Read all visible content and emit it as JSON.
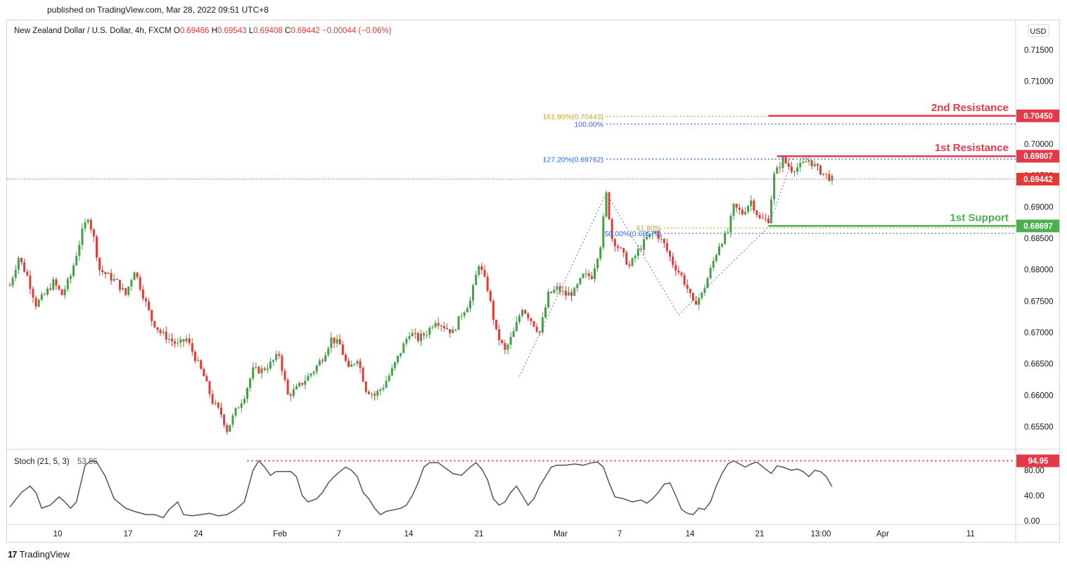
{
  "header": {
    "published": "published on TradingView.com, Mar 28, 2022 09:51 UTC+8"
  },
  "footer": {
    "brand": "TradingView",
    "logo_glyph": "17"
  },
  "colors": {
    "up": "#43a047",
    "down": "#e53935",
    "resistance": "#e53949",
    "support": "#4caf50",
    "fib_gold": "#c9a227",
    "fib_blue": "#2962ff",
    "stoch_line": "#555555",
    "grid": "#f0f3fa"
  },
  "chart_data": {
    "type": "candlestick",
    "symbol": "New Zealand Dollar / U.S. Dollar, 4h, FXCM",
    "ohlc": {
      "o_label": "O",
      "o_value": "0.69486",
      "h_label": "H",
      "h_value": "0.69543",
      "l_label": "L",
      "l_value": "0.69408",
      "c_label": "C",
      "c_value": "0.69442",
      "change": "−0.00044 (−0.06%)"
    },
    "currency": "USD",
    "y_ticks": [
      "0.71500",
      "0.71000",
      "0.70500",
      "0.70000",
      "0.69500",
      "0.69000",
      "0.68500",
      "0.68000",
      "0.67500",
      "0.67000",
      "0.66500",
      "0.66000",
      "0.65500"
    ],
    "y_tick_values": [
      0.715,
      0.71,
      0.705,
      0.7,
      0.695,
      0.69,
      0.685,
      0.68,
      0.675,
      0.67,
      0.665,
      0.66,
      0.655
    ],
    "x_ticks": [
      "10",
      "17",
      "24",
      "Feb",
      "7",
      "14",
      "21",
      "Mar",
      "7",
      "14",
      "21",
      "13:00",
      "Apr",
      "11"
    ],
    "price_levels": [
      {
        "name": "2nd Resistance",
        "value": 0.7045,
        "label": "0.70450"
      },
      {
        "name": "1st Resistance",
        "value": 0.69807,
        "label": "0.69807"
      },
      {
        "name": "1st Support",
        "value": 0.68697,
        "label": "0.68697"
      }
    ],
    "last_price": {
      "value": 0.69442,
      "label": "0.69442"
    },
    "fib_levels": [
      {
        "label": "161.80%(0.70443)",
        "value": 0.70443,
        "color": "gold"
      },
      {
        "label": "100.00%",
        "value": 0.7032,
        "color": "blue"
      },
      {
        "label": "127.20%(0.69762)",
        "value": 0.69762,
        "color": "blue"
      },
      {
        "label": "61.80%",
        "value": 0.68666,
        "color": "gold"
      },
      {
        "label": "50.00%(0.68579)",
        "value": 0.68579,
        "color": "blue"
      }
    ],
    "candle_path": [
      [
        0,
        0.6775
      ],
      [
        3,
        0.682
      ],
      [
        6,
        0.679
      ],
      [
        9,
        0.6745
      ],
      [
        12,
        0.676
      ],
      [
        15,
        0.678
      ],
      [
        18,
        0.676
      ],
      [
        21,
        0.679
      ],
      [
        25,
        0.686
      ],
      [
        27,
        0.6885
      ],
      [
        29,
        0.685
      ],
      [
        31,
        0.68
      ],
      [
        34,
        0.679
      ],
      [
        37,
        0.678
      ],
      [
        40,
        0.676
      ],
      [
        43,
        0.68
      ],
      [
        46,
        0.676
      ],
      [
        49,
        0.672
      ],
      [
        52,
        0.67
      ],
      [
        55,
        0.669
      ],
      [
        58,
        0.668
      ],
      [
        61,
        0.669
      ],
      [
        64,
        0.666
      ],
      [
        67,
        0.663
      ],
      [
        70,
        0.659
      ],
      [
        73,
        0.657
      ],
      [
        75,
        0.6545
      ],
      [
        78,
        0.6575
      ],
      [
        81,
        0.66
      ],
      [
        84,
        0.664
      ],
      [
        87,
        0.664
      ],
      [
        90,
        0.665
      ],
      [
        93,
        0.6665
      ],
      [
        96,
        0.66
      ],
      [
        99,
        0.661
      ],
      [
        102,
        0.6625
      ],
      [
        105,
        0.664
      ],
      [
        108,
        0.666
      ],
      [
        111,
        0.669
      ],
      [
        114,
        0.668
      ],
      [
        117,
        0.664
      ],
      [
        120,
        0.666
      ],
      [
        123,
        0.661
      ],
      [
        126,
        0.66
      ],
      [
        129,
        0.6615
      ],
      [
        132,
        0.664
      ],
      [
        135,
        0.667
      ],
      [
        138,
        0.67
      ],
      [
        141,
        0.669
      ],
      [
        144,
        0.67
      ],
      [
        147,
        0.672
      ],
      [
        150,
        0.671
      ],
      [
        153,
        0.67
      ],
      [
        156,
        0.673
      ],
      [
        159,
        0.675
      ],
      [
        162,
        0.681
      ],
      [
        165,
        0.677
      ],
      [
        168,
        0.67
      ],
      [
        171,
        0.667
      ],
      [
        174,
        0.67
      ],
      [
        177,
        0.674
      ],
      [
        180,
        0.672
      ],
      [
        183,
        0.67
      ],
      [
        186,
        0.676
      ],
      [
        189,
        0.677
      ],
      [
        192,
        0.676
      ],
      [
        195,
        0.6765
      ],
      [
        198,
        0.679
      ],
      [
        201,
        0.679
      ],
      [
        204,
        0.684
      ],
      [
        206,
        0.692
      ],
      [
        208,
        0.685
      ],
      [
        211,
        0.683
      ],
      [
        214,
        0.6805
      ],
      [
        217,
        0.683
      ],
      [
        220,
        0.685
      ],
      [
        223,
        0.686
      ],
      [
        226,
        0.684
      ],
      [
        229,
        0.681
      ],
      [
        232,
        0.679
      ],
      [
        234,
        0.677
      ],
      [
        236,
        0.6745
      ],
      [
        239,
        0.676
      ],
      [
        242,
        0.68
      ],
      [
        245,
        0.684
      ],
      [
        248,
        0.686
      ],
      [
        250,
        0.69
      ],
      [
        253,
        0.689
      ],
      [
        256,
        0.691
      ],
      [
        259,
        0.688
      ],
      [
        262,
        0.688
      ],
      [
        264,
        0.695
      ],
      [
        267,
        0.6975
      ],
      [
        270,
        0.696
      ],
      [
        273,
        0.6965
      ],
      [
        276,
        0.6975
      ],
      [
        279,
        0.696
      ],
      [
        282,
        0.695
      ],
      [
        284,
        0.6944
      ]
    ],
    "zigzag": [
      [
        176,
        0.663
      ],
      [
        206,
        0.6922
      ],
      [
        231,
        0.6728
      ],
      [
        262,
        0.6868
      ],
      [
        271,
        0.6985
      ]
    ],
    "stochastic": {
      "label": "Stoch (21, 5, 3)",
      "value": "53.95",
      "level_label": "94.95",
      "level": 94.95,
      "y_ticks": [
        "80.00",
        "40.00",
        "0.00"
      ],
      "y_tick_values": [
        80,
        40,
        0
      ],
      "points": [
        [
          0,
          22
        ],
        [
          4,
          45
        ],
        [
          7,
          55
        ],
        [
          9,
          45
        ],
        [
          11,
          20
        ],
        [
          14,
          25
        ],
        [
          17,
          38
        ],
        [
          19,
          30
        ],
        [
          21,
          20
        ],
        [
          23,
          30
        ],
        [
          26,
          88
        ],
        [
          28,
          95
        ],
        [
          30,
          93
        ],
        [
          33,
          70
        ],
        [
          36,
          35
        ],
        [
          40,
          20
        ],
        [
          43,
          15
        ],
        [
          47,
          10
        ],
        [
          50,
          10
        ],
        [
          53,
          5
        ],
        [
          55,
          18
        ],
        [
          58,
          30
        ],
        [
          60,
          10
        ],
        [
          63,
          8
        ],
        [
          66,
          10
        ],
        [
          69,
          12
        ],
        [
          72,
          8
        ],
        [
          75,
          10
        ],
        [
          78,
          18
        ],
        [
          81,
          30
        ],
        [
          84,
          80
        ],
        [
          86,
          95
        ],
        [
          88,
          85
        ],
        [
          90,
          72
        ],
        [
          92,
          78
        ],
        [
          94,
          78
        ],
        [
          97,
          78
        ],
        [
          99,
          70
        ],
        [
          101,
          40
        ],
        [
          103,
          30
        ],
        [
          106,
          35
        ],
        [
          108,
          45
        ],
        [
          110,
          60
        ],
        [
          112,
          70
        ],
        [
          114,
          78
        ],
        [
          116,
          85
        ],
        [
          118,
          80
        ],
        [
          120,
          70
        ],
        [
          122,
          45
        ],
        [
          124,
          35
        ],
        [
          126,
          20
        ],
        [
          128,
          10
        ],
        [
          130,
          15
        ],
        [
          133,
          18
        ],
        [
          135,
          20
        ],
        [
          137,
          25
        ],
        [
          139,
          40
        ],
        [
          141,
          60
        ],
        [
          143,
          85
        ],
        [
          145,
          92
        ],
        [
          148,
          92
        ],
        [
          150,
          85
        ],
        [
          153,
          75
        ],
        [
          156,
          72
        ],
        [
          159,
          85
        ],
        [
          161,
          92
        ],
        [
          163,
          82
        ],
        [
          165,
          65
        ],
        [
          167,
          35
        ],
        [
          169,
          25
        ],
        [
          171,
          30
        ],
        [
          173,
          45
        ],
        [
          175,
          55
        ],
        [
          177,
          40
        ],
        [
          179,
          25
        ],
        [
          181,
          35
        ],
        [
          183,
          55
        ],
        [
          185,
          70
        ],
        [
          187,
          85
        ],
        [
          189,
          88
        ],
        [
          192,
          88
        ],
        [
          195,
          90
        ],
        [
          198,
          88
        ],
        [
          201,
          92
        ],
        [
          203,
          93
        ],
        [
          205,
          85
        ],
        [
          207,
          60
        ],
        [
          209,
          38
        ],
        [
          212,
          35
        ],
        [
          215,
          30
        ],
        [
          218,
          33
        ],
        [
          220,
          28
        ],
        [
          222,
          35
        ],
        [
          224,
          45
        ],
        [
          226,
          58
        ],
        [
          228,
          60
        ],
        [
          230,
          40
        ],
        [
          232,
          18
        ],
        [
          234,
          12
        ],
        [
          236,
          10
        ],
        [
          238,
          20
        ],
        [
          240,
          18
        ],
        [
          242,
          30
        ],
        [
          244,
          55
        ],
        [
          246,
          75
        ],
        [
          248,
          90
        ],
        [
          250,
          95
        ],
        [
          252,
          90
        ],
        [
          254,
          85
        ],
        [
          256,
          90
        ],
        [
          258,
          93
        ],
        [
          261,
          82
        ],
        [
          263,
          75
        ],
        [
          265,
          87
        ],
        [
          267,
          85
        ],
        [
          270,
          80
        ],
        [
          272,
          82
        ],
        [
          274,
          78
        ],
        [
          276,
          70
        ],
        [
          278,
          80
        ],
        [
          280,
          78
        ],
        [
          282,
          70
        ],
        [
          284,
          54
        ]
      ]
    }
  }
}
